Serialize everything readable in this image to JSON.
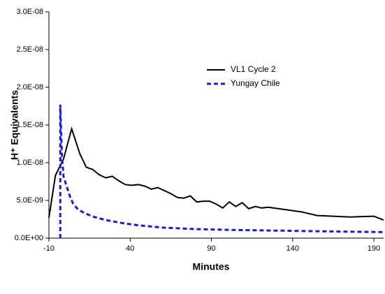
{
  "chart_data": {
    "type": "line",
    "x_label": "Minutes",
    "y_label": "H⁺ Equivalents",
    "xlim": [
      -10,
      196
    ],
    "xticks": [
      -10,
      40,
      90,
      140,
      190
    ],
    "ylim": [
      0,
      3e-08
    ],
    "yticks": [
      {
        "value": 0,
        "label": "0.0E+00"
      },
      {
        "value": 5e-09,
        "label": "5.0E-09"
      },
      {
        "value": 1e-08,
        "label": "1.0E-08"
      },
      {
        "value": 1.5e-08,
        "label": "1.5E-08"
      },
      {
        "value": 2e-08,
        "label": "2.0E-08"
      },
      {
        "value": 2.5e-08,
        "label": "2.5E-08"
      },
      {
        "value": 3e-08,
        "label": "3.0E-08"
      }
    ],
    "grid": false,
    "series": [
      {
        "name": "VL1 Cycle 2",
        "color": "#000000",
        "dash": false,
        "x": [
          -10,
          -6,
          -1,
          4,
          9,
          13,
          17,
          21,
          25,
          29,
          33,
          37,
          41,
          45,
          49,
          53,
          57,
          61,
          65,
          69,
          73,
          77,
          81,
          85,
          89,
          93,
          97,
          101,
          105,
          109,
          113,
          117,
          121,
          125,
          135,
          145,
          155,
          165,
          175,
          190,
          196
        ],
        "values": [
          2.7e-09,
          8.3e-09,
          1.05e-08,
          1.45e-08,
          1.12e-08,
          9.4e-09,
          9.1e-09,
          8.4e-09,
          8e-09,
          8.2e-09,
          7.6e-09,
          7.1e-09,
          7e-09,
          7.1e-09,
          6.9e-09,
          6.5e-09,
          6.7e-09,
          6.3e-09,
          5.9e-09,
          5.4e-09,
          5.3e-09,
          5.6e-09,
          4.8e-09,
          4.9e-09,
          4.9e-09,
          4.5e-09,
          4e-09,
          4.8e-09,
          4.2e-09,
          4.7e-09,
          3.9e-09,
          4.2e-09,
          4e-09,
          4.1e-09,
          3.8e-09,
          3.5e-09,
          3e-09,
          2.9e-09,
          2.8e-09,
          2.9e-09,
          2.4e-09
        ]
      },
      {
        "name": "Yungay Chile",
        "color": "#1a1adb",
        "dash": true,
        "x": [
          -3,
          -3,
          -2,
          -1,
          1,
          3,
          5,
          8,
          12,
          18,
          25,
          35,
          45,
          60,
          80,
          100,
          130,
          160,
          196
        ],
        "values": [
          0,
          1.77e-08,
          1.1e-08,
          8.2e-09,
          6.8e-09,
          5.5e-09,
          4.5e-09,
          3.8e-09,
          3.3e-09,
          2.8e-09,
          2.4e-09,
          2e-09,
          1.7e-09,
          1.4e-09,
          1.2e-09,
          1.1e-09,
          1e-09,
          9e-10,
          8e-10
        ]
      }
    ]
  }
}
